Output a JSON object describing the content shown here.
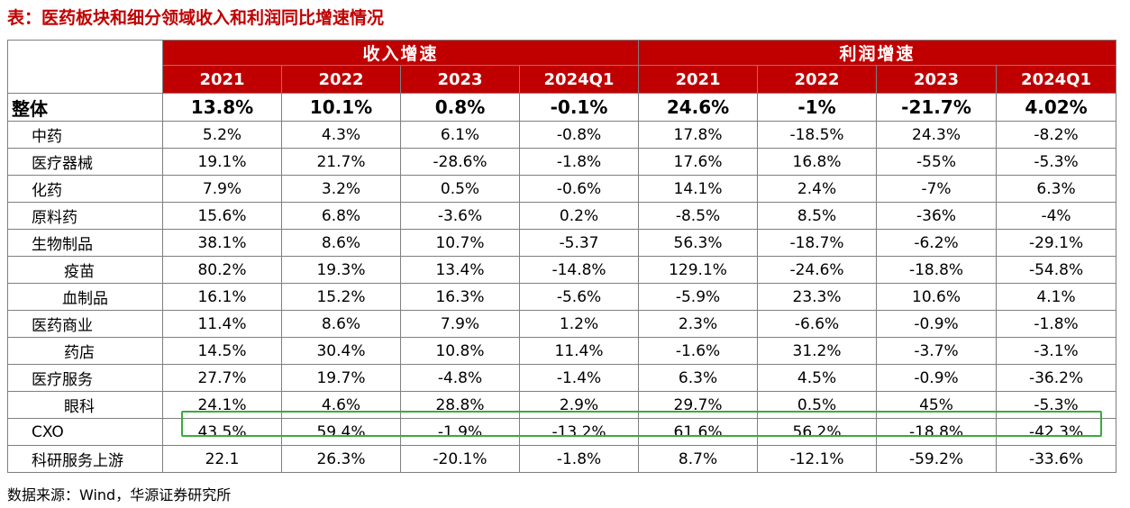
{
  "title": "表：医药板块和细分领域收入和利润同比增速情况",
  "groups": [
    "收入增速",
    "利润增速"
  ],
  "years": [
    "2021",
    "2022",
    "2023",
    "2024Q1",
    "2021",
    "2022",
    "2023",
    "2024Q1"
  ],
  "rows": [
    {
      "label": "整体",
      "values": [
        "13.8%",
        "10.1%",
        "0.8%",
        "-0.1%",
        "24.6%",
        "-1%",
        "-21.7%",
        "4.02%"
      ]
    },
    {
      "label": "中药",
      "values": [
        "5.2%",
        "4.3%",
        "6.1%",
        "-0.8%",
        "17.8%",
        "-18.5%",
        "24.3%",
        "-8.2%"
      ]
    },
    {
      "label": "医疗器械",
      "values": [
        "19.1%",
        "21.7%",
        "-28.6%",
        "-1.8%",
        "17.6%",
        "16.8%",
        "-55%",
        "-5.3%"
      ]
    },
    {
      "label": "化药",
      "values": [
        "7.9%",
        "3.2%",
        "0.5%",
        "-0.6%",
        "14.1%",
        "2.4%",
        "-7%",
        "6.3%"
      ]
    },
    {
      "label": "原料药",
      "values": [
        "15.6%",
        "6.8%",
        "-3.6%",
        "0.2%",
        "-8.5%",
        "8.5%",
        "-36%",
        "-4%"
      ]
    },
    {
      "label": "生物制品",
      "values": [
        "38.1%",
        "8.6%",
        "10.7%",
        "-5.37",
        "56.3%",
        "-18.7%",
        "-6.2%",
        "-29.1%"
      ]
    },
    {
      "label": "疫苗",
      "values": [
        "80.2%",
        "19.3%",
        "13.4%",
        "-14.8%",
        "129.1%",
        "-24.6%",
        "-18.8%",
        "-54.8%"
      ]
    },
    {
      "label": "血制品",
      "values": [
        "16.1%",
        "15.2%",
        "16.3%",
        "-5.6%",
        "-5.9%",
        "23.3%",
        "10.6%",
        "4.1%"
      ]
    },
    {
      "label": "医药商业",
      "values": [
        "11.4%",
        "8.6%",
        "7.9%",
        "1.2%",
        "2.3%",
        "-6.6%",
        "-0.9%",
        "-1.8%"
      ]
    },
    {
      "label": "药店",
      "values": [
        "14.5%",
        "30.4%",
        "10.8%",
        "11.4%",
        "-1.6%",
        "31.2%",
        "-3.7%",
        "-3.1%"
      ]
    },
    {
      "label": "医疗服务",
      "values": [
        "27.7%",
        "19.7%",
        "-4.8%",
        "-1.4%",
        "6.3%",
        "4.5%",
        "-0.9%",
        "-36.2%"
      ]
    },
    {
      "label": "眼科",
      "values": [
        "24.1%",
        "4.6%",
        "28.8%",
        "2.9%",
        "29.7%",
        "0.5%",
        "45%",
        "-5.3%"
      ]
    },
    {
      "label": "CXO",
      "values": [
        "43.5%",
        "59.4%",
        "-1.9%",
        "-13.2%",
        "61.6%",
        "56.2%",
        "-18.8%",
        "-42.3%"
      ]
    },
    {
      "label": "科研服务上游",
      "values": [
        "22.1",
        "26.3%",
        "-20.1%",
        "-1.8%",
        "8.7%",
        "-12.1%",
        "-59.2%",
        "-33.6%"
      ]
    }
  ],
  "colors": {
    "header_bg": "#c00000",
    "header_text": "#ffffff",
    "title": "#c00000",
    "highlight_border": "#3aab3a"
  },
  "source": "数据来源：Wind，华源证券研究所"
}
